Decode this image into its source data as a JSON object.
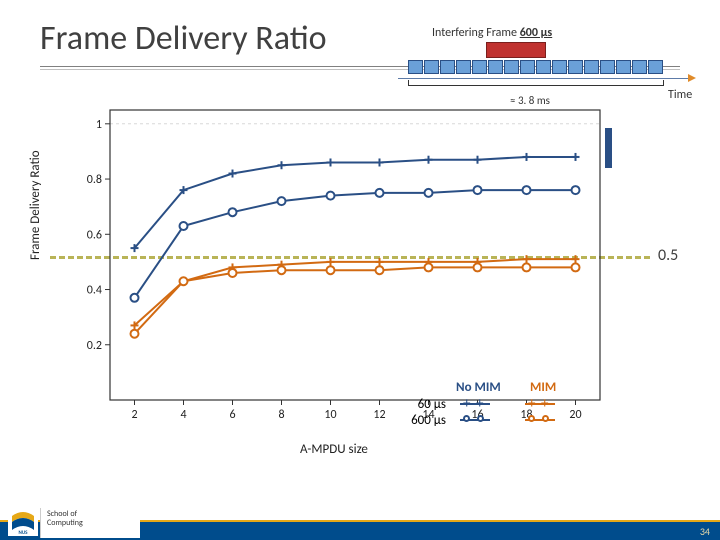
{
  "title": "Frame Delivery Ratio",
  "page_number": "34",
  "footer": {
    "line1": "School of",
    "line2": "Computing"
  },
  "timing": {
    "label_prefix": "Interfering Frame",
    "label_value": "600 µs",
    "red_frame_color": "#c0322f",
    "seg_fill": "#6aa0d8",
    "seg_border": "#2a4f85",
    "segments": 16,
    "brace_text": "≈ 3. 8 ms",
    "time_label": "Time",
    "axis_color": "#e08b2a"
  },
  "ref_line": {
    "value_label": "0.5",
    "color": "#b9b457"
  },
  "chart": {
    "type": "line",
    "background_color": "#ffffff",
    "grid_color": "#d8d8d8",
    "tick_fontsize": 12,
    "xlabel": "A-MPDU size",
    "ylabel": "Frame Delivery Ratio",
    "label_fontsize": 13,
    "xlim": [
      1,
      21
    ],
    "xticks": [
      2,
      4,
      6,
      8,
      10,
      12,
      14,
      16,
      18,
      20
    ],
    "ylim": [
      0,
      1.05
    ],
    "yticks": [
      0.2,
      0.4,
      0.6,
      0.8,
      1
    ],
    "colors": {
      "no_mim": "#2a4f85",
      "mim": "#d26a12"
    },
    "line_width": 2.0,
    "marker_size": 8,
    "series": {
      "no_mim_60": {
        "marker": "plus",
        "color": "no_mim",
        "x": [
          2,
          4,
          6,
          8,
          10,
          12,
          14,
          16,
          18,
          20
        ],
        "y": [
          0.55,
          0.76,
          0.82,
          0.85,
          0.86,
          0.86,
          0.87,
          0.87,
          0.88,
          0.88
        ]
      },
      "no_mim_600": {
        "marker": "circle",
        "color": "no_mim",
        "x": [
          2,
          4,
          6,
          8,
          10,
          12,
          14,
          16,
          18,
          20
        ],
        "y": [
          0.37,
          0.63,
          0.68,
          0.72,
          0.74,
          0.75,
          0.75,
          0.76,
          0.76,
          0.76
        ]
      },
      "mim_60": {
        "marker": "plus",
        "color": "mim",
        "x": [
          2,
          4,
          6,
          8,
          10,
          12,
          14,
          16,
          18,
          20
        ],
        "y": [
          0.27,
          0.43,
          0.48,
          0.49,
          0.5,
          0.5,
          0.5,
          0.5,
          0.51,
          0.51
        ]
      },
      "mim_600": {
        "marker": "circle",
        "color": "mim",
        "x": [
          2,
          4,
          6,
          8,
          10,
          12,
          14,
          16,
          18,
          20
        ],
        "y": [
          0.24,
          0.43,
          0.46,
          0.47,
          0.47,
          0.47,
          0.48,
          0.48,
          0.48,
          0.48
        ]
      }
    },
    "legend": {
      "rows": [
        "60 µs",
        "600 µs"
      ],
      "cols": [
        "No MIM",
        "MIM"
      ],
      "col_colors": [
        "#2a4f85",
        "#d26a12"
      ]
    }
  },
  "accent": {
    "blue_vertical_color": "#2a4f85"
  }
}
